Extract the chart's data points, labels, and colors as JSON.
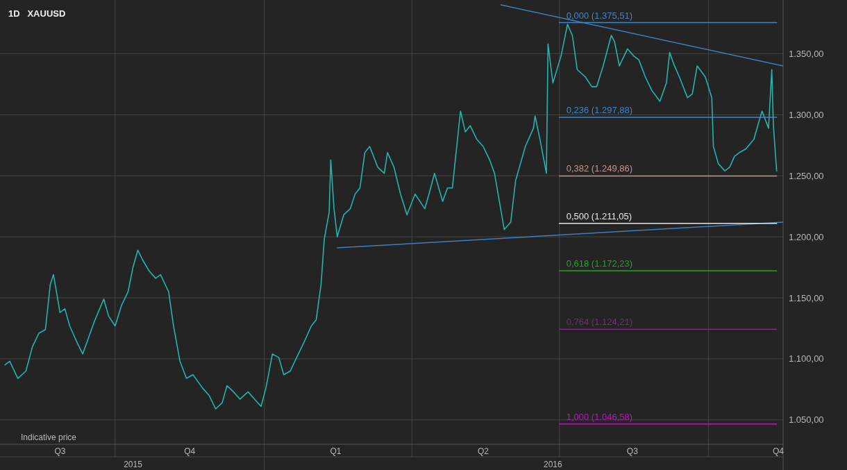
{
  "chart_data": {
    "type": "line",
    "title": "1D   XAUUSD",
    "annotations": [
      "Indicative price"
    ],
    "xlim": [
      "2015-07-22",
      "2016-11-16"
    ],
    "ylim": [
      1030,
      1394
    ],
    "xticks": [
      {
        "value": "2015-08-28",
        "label": "Q3"
      },
      {
        "value": "2015-11-16",
        "label": "Q4"
      },
      {
        "value": "2016-02-14",
        "label": "Q1"
      },
      {
        "value": "2016-05-15",
        "label": "Q2"
      },
      {
        "value": "2016-08-15",
        "label": "Q3"
      },
      {
        "value": "2016-11-13",
        "label": "Q4"
      },
      {
        "value": "2015-10-01",
        "label": null
      },
      {
        "value": "2016-01-01",
        "label": null
      },
      {
        "value": "2016-04-01",
        "label": null
      },
      {
        "value": "2016-07-01",
        "label": null
      },
      {
        "value": "2016-10-01",
        "label": null
      }
    ],
    "x2lim": [
      "2015-07-22",
      "2016-11-16"
    ],
    "x2ticks": [
      {
        "value": "2015-10-12",
        "label": "2015"
      },
      {
        "value": "2016-06-27",
        "label": "2016"
      },
      {
        "value": "2016-01-01",
        "label": null
      }
    ],
    "yticks": [
      {
        "value": 1050,
        "label": "1.050,00"
      },
      {
        "value": 1100,
        "label": "1.100,00"
      },
      {
        "value": 1150,
        "label": "1.150,00"
      },
      {
        "value": 1200,
        "label": "1.200,00"
      },
      {
        "value": 1250,
        "label": "1.250,00"
      },
      {
        "value": 1300,
        "label": "1.300,00"
      },
      {
        "value": 1350,
        "label": "1.350,00"
      }
    ],
    "grid": true,
    "series": [
      {
        "color": "#22b5ae",
        "x": [
          "2015-07-25",
          "2015-07-28",
          "2015-08-02",
          "2015-08-07",
          "2015-08-11",
          "2015-08-15",
          "2015-08-19",
          "2015-08-22",
          "2015-08-24",
          "2015-08-28",
          "2015-08-31",
          "2015-09-03",
          "2015-09-07",
          "2015-09-11",
          "2015-09-14",
          "2015-09-18",
          "2015-09-24",
          "2015-09-27",
          "2015-10-01",
          "2015-10-05",
          "2015-10-09",
          "2015-10-12",
          "2015-10-15",
          "2015-10-18",
          "2015-10-22",
          "2015-10-26",
          "2015-10-29",
          "2015-11-03",
          "2015-11-06",
          "2015-11-10",
          "2015-11-14",
          "2015-11-18",
          "2015-11-24",
          "2015-11-28",
          "2015-12-02",
          "2015-12-06",
          "2015-12-09",
          "2015-12-13",
          "2015-12-17",
          "2015-12-22",
          "2015-12-26",
          "2015-12-30",
          "2016-01-02",
          "2016-01-06",
          "2016-01-10",
          "2016-01-13",
          "2016-01-17",
          "2016-01-22",
          "2016-01-26",
          "2016-01-30",
          "2016-02-02",
          "2016-02-05",
          "2016-02-07",
          "2016-02-10",
          "2016-02-11",
          "2016-02-13",
          "2016-02-15",
          "2016-02-19",
          "2016-02-23",
          "2016-02-26",
          "2016-02-29",
          "2016-03-03",
          "2016-03-06",
          "2016-03-11",
          "2016-03-15",
          "2016-03-17",
          "2016-03-21",
          "2016-03-25",
          "2016-03-29",
          "2016-04-03",
          "2016-04-06",
          "2016-04-09",
          "2016-04-12",
          "2016-04-15",
          "2016-04-20",
          "2016-04-23",
          "2016-04-26",
          "2016-05-01",
          "2016-05-04",
          "2016-05-07",
          "2016-05-11",
          "2016-05-15",
          "2016-05-19",
          "2016-05-22",
          "2016-05-25",
          "2016-05-28",
          "2016-06-01",
          "2016-06-04",
          "2016-06-07",
          "2016-06-10",
          "2016-06-15",
          "2016-06-16",
          "2016-06-19",
          "2016-06-23",
          "2016-06-24",
          "2016-06-27",
          "2016-07-02",
          "2016-07-06",
          "2016-07-09",
          "2016-07-12",
          "2016-07-17",
          "2016-07-21",
          "2016-07-24",
          "2016-07-28",
          "2016-08-02",
          "2016-08-04",
          "2016-08-07",
          "2016-08-12",
          "2016-08-16",
          "2016-08-19",
          "2016-08-23",
          "2016-08-27",
          "2016-09-01",
          "2016-09-05",
          "2016-09-07",
          "2016-09-10",
          "2016-09-13",
          "2016-09-18",
          "2016-09-21",
          "2016-09-24",
          "2016-09-29",
          "2016-10-03",
          "2016-10-04",
          "2016-10-07",
          "2016-10-11",
          "2016-10-14",
          "2016-10-17",
          "2016-10-20",
          "2016-10-24",
          "2016-10-29",
          "2016-11-01",
          "2016-11-03",
          "2016-11-07",
          "2016-11-09",
          "2016-11-10",
          "2016-11-12"
        ],
        "values": [
          1095,
          1098,
          1084,
          1090,
          1110,
          1121,
          1124,
          1161,
          1169,
          1138,
          1141,
          1127,
          1115,
          1104,
          1115,
          1130,
          1149,
          1135,
          1127,
          1144,
          1155,
          1175,
          1189,
          1181,
          1172,
          1166,
          1169,
          1155,
          1127,
          1098,
          1084,
          1087,
          1076,
          1070,
          1059,
          1064,
          1078,
          1073,
          1067,
          1073,
          1067,
          1061,
          1076,
          1104,
          1101,
          1087,
          1090,
          1104,
          1115,
          1127,
          1132,
          1161,
          1198,
          1220,
          1263,
          1223,
          1200,
          1218,
          1223,
          1235,
          1240,
          1269,
          1274,
          1257,
          1252,
          1269,
          1257,
          1235,
          1218,
          1235,
          1229,
          1223,
          1237,
          1252,
          1229,
          1240,
          1240,
          1303,
          1286,
          1291,
          1280,
          1274,
          1263,
          1252,
          1229,
          1206,
          1212,
          1246,
          1260,
          1274,
          1289,
          1299,
          1280,
          1252,
          1358,
          1326,
          1348,
          1374,
          1365,
          1337,
          1331,
          1323,
          1323,
          1340,
          1365,
          1360,
          1340,
          1354,
          1348,
          1345,
          1331,
          1320,
          1311,
          1326,
          1351,
          1340,
          1331,
          1314,
          1317,
          1340,
          1331,
          1314,
          1274,
          1260,
          1254,
          1257,
          1266,
          1269,
          1272,
          1280,
          1294,
          1303,
          1289,
          1337,
          1291,
          1254
        ]
      },
      {
        "type": "line",
        "color": "#3f7fbf",
        "x": [
          "2016-05-26",
          "2016-11-16"
        ],
        "values": [
          1390,
          1340
        ]
      },
      {
        "type": "line",
        "color": "#3f7fbf",
        "x": [
          "2016-02-15",
          "2016-11-16"
        ],
        "values": [
          1191,
          1212
        ]
      },
      {
        "type": "line",
        "name": "0,000 (1.375,51)",
        "color": "#3f86c6",
        "x": [
          "2016-07-01",
          "2016-11-12"
        ],
        "values": [
          1375.51,
          1375.51
        ]
      },
      {
        "type": "line",
        "name": "0,236 (1.297,88)",
        "color": "#3f86c6",
        "x": [
          "2016-07-01",
          "2016-11-12"
        ],
        "values": [
          1297.88,
          1297.88
        ]
      },
      {
        "type": "line",
        "name": "0,382 (1.249,86)",
        "color": "#c49488",
        "x": [
          "2016-07-01",
          "2016-11-12"
        ],
        "values": [
          1249.86,
          1249.86
        ]
      },
      {
        "type": "line",
        "name": "0,500 (1.211,05)",
        "color": "#e6e6e6",
        "x": [
          "2016-07-01",
          "2016-11-12"
        ],
        "values": [
          1211.05,
          1211.05
        ]
      },
      {
        "type": "line",
        "name": "0,618 (1.172,23)",
        "color": "#1fa81f",
        "x": [
          "2016-07-01",
          "2016-11-12"
        ],
        "values": [
          1172.23,
          1172.23
        ]
      },
      {
        "type": "line",
        "name": "0,764 (1.124,21)",
        "color": "#7a2a7a",
        "x": [
          "2016-07-01",
          "2016-11-12"
        ],
        "values": [
          1124.21,
          1124.21
        ]
      },
      {
        "type": "line",
        "name": "1,000 (1.046,58)",
        "color": "#b51cb5",
        "x": [
          "2016-07-01",
          "2016-11-12"
        ],
        "values": [
          1046.58,
          1046.58
        ]
      }
    ]
  }
}
